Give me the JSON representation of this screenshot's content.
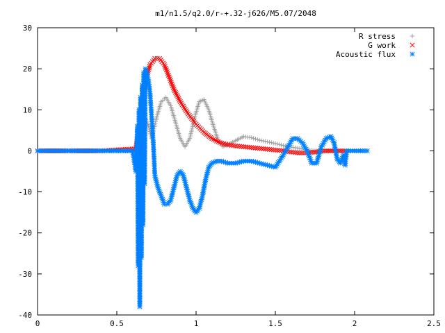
{
  "chart_data": {
    "type": "scatter",
    "title": "m1/n1.5/q2.0/r-+.32-j626/M5.07/2048",
    "xlabel": "",
    "ylabel": "",
    "xlim": [
      0,
      2.5
    ],
    "ylim": [
      -40,
      30
    ],
    "x_ticks": [
      "0",
      "0.5",
      "1",
      "1.5",
      "2",
      "2.5"
    ],
    "y_ticks": [
      "30",
      "20",
      "10",
      "0",
      "-10",
      "-20",
      "-30",
      "-40"
    ],
    "grid": false,
    "legend": "top-right",
    "series": [
      {
        "name": "R stress",
        "marker": "plus",
        "color": "#a0a0a0",
        "x": [
          0.0,
          0.2,
          0.4,
          0.62,
          0.64,
          0.66,
          0.68,
          0.7,
          0.72,
          0.75,
          0.78,
          0.81,
          0.84,
          0.87,
          0.9,
          0.93,
          0.96,
          0.99,
          1.02,
          1.05,
          1.08,
          1.11,
          1.14,
          1.17,
          1.2,
          1.25,
          1.3,
          1.35,
          1.4,
          1.45,
          1.5,
          1.55,
          1.6,
          1.65,
          1.7,
          1.75,
          1.8,
          1.85,
          1.9,
          1.94
        ],
        "y": [
          0,
          0,
          0,
          0,
          2,
          5,
          8,
          6,
          3,
          8,
          12,
          13,
          11,
          7,
          3,
          1,
          3,
          8,
          12,
          12.5,
          10,
          6,
          2.5,
          1,
          1.5,
          2.5,
          3.5,
          3.2,
          2.6,
          2.2,
          1.8,
          1.3,
          0.9,
          0.6,
          0.3,
          0,
          -0.3,
          0,
          0,
          0
        ]
      },
      {
        "name": "G work",
        "marker": "cross",
        "color": "#ff0000",
        "x": [
          0.0,
          0.2,
          0.4,
          0.62,
          0.65,
          0.68,
          0.71,
          0.74,
          0.77,
          0.8,
          0.83,
          0.86,
          0.9,
          0.95,
          1.0,
          1.05,
          1.1,
          1.15,
          1.2,
          1.25,
          1.3,
          1.35,
          1.4,
          1.45,
          1.5,
          1.55,
          1.6,
          1.65,
          1.7,
          1.75,
          1.8,
          1.85,
          1.9,
          1.94
        ],
        "y": [
          0,
          0,
          0,
          0.5,
          8,
          17,
          21,
          22.5,
          22.5,
          21,
          18,
          15,
          12,
          9,
          6.5,
          4.5,
          3,
          2,
          1.5,
          1.2,
          1,
          0.8,
          0.6,
          0.4,
          0.2,
          0,
          -0.3,
          -0.5,
          -0.5,
          -0.3,
          0,
          0,
          0,
          0
        ]
      },
      {
        "name": "Acoustic flux",
        "marker": "star",
        "color": "#0080ff",
        "x": [
          0.0,
          0.1,
          0.2,
          0.3,
          0.4,
          0.5,
          0.6,
          0.62,
          0.63,
          0.635,
          0.64,
          0.645,
          0.65,
          0.655,
          0.66,
          0.665,
          0.67,
          0.675,
          0.68,
          0.69,
          0.7,
          0.71,
          0.72,
          0.73,
          0.74,
          0.76,
          0.78,
          0.8,
          0.82,
          0.84,
          0.86,
          0.88,
          0.9,
          0.92,
          0.94,
          0.96,
          0.98,
          1.0,
          1.02,
          1.04,
          1.06,
          1.08,
          1.1,
          1.13,
          1.16,
          1.2,
          1.25,
          1.3,
          1.35,
          1.4,
          1.45,
          1.5,
          1.55,
          1.58,
          1.61,
          1.64,
          1.67,
          1.7,
          1.73,
          1.76,
          1.79,
          1.82,
          1.85,
          1.87,
          1.89,
          1.91,
          1.93,
          1.94,
          1.95,
          2.0,
          2.05,
          2.08
        ],
        "y": [
          0,
          0,
          0,
          0,
          0,
          0,
          0,
          -5,
          6,
          -28,
          10,
          -38,
          13,
          -26,
          16,
          -18,
          19,
          -8,
          20,
          19,
          17,
          14,
          8,
          2,
          -6,
          -9,
          -11,
          -13,
          -13,
          -12,
          -9,
          -6,
          -5,
          -6,
          -9,
          -12,
          -14,
          -15,
          -14,
          -11,
          -7,
          -4,
          -3,
          -2.5,
          -2.5,
          -3,
          -3,
          -2.5,
          -2.5,
          -3,
          -3.5,
          -4,
          -1,
          1,
          3,
          3,
          2,
          0,
          -3,
          -3,
          1,
          3,
          3.5,
          2,
          -2,
          -3,
          -1,
          -3.5,
          0,
          0,
          0,
          0
        ]
      }
    ]
  }
}
